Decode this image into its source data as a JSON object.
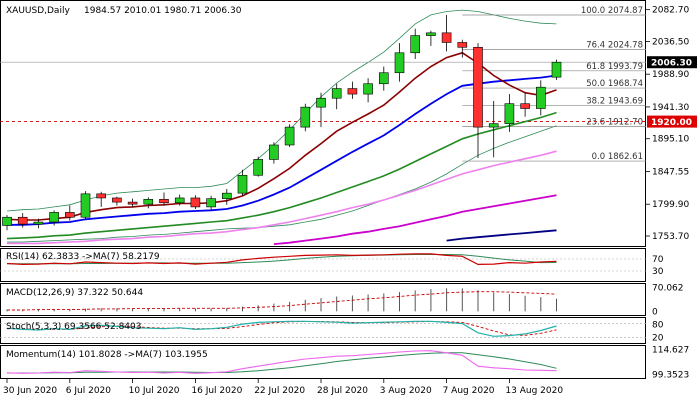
{
  "chart_data": {
    "type": "candlestick",
    "symbol_line": "XAUUSD,Daily",
    "ohlc_text": "1984.57 2010.01 1980.71 2006.30",
    "price_scale": [
      "2082.70",
      "2036.50",
      "1988.90",
      "1941.30",
      "1895.10",
      "1847.55",
      "1799.90",
      "1753.70"
    ],
    "ylim": [
      1745,
      2088
    ],
    "dates": [
      "30 Jun 2020",
      "6 Jul 2020",
      "10 Jul 2020",
      "16 Jul 2020",
      "22 Jul 2020",
      "28 Jul 2020",
      "3 Aug 2020",
      "7 Aug 2020",
      "13 Aug 2020"
    ],
    "candles": [
      [
        1769,
        1784,
        1762,
        1781
      ],
      [
        1781,
        1787,
        1766,
        1771
      ],
      [
        1771,
        1779,
        1765,
        1774
      ],
      [
        1774,
        1791,
        1769,
        1788
      ],
      [
        1788,
        1798,
        1776,
        1781
      ],
      [
        1781,
        1819,
        1778,
        1815
      ],
      [
        1815,
        1818,
        1796,
        1809
      ],
      [
        1809,
        1811,
        1798,
        1803
      ],
      [
        1803,
        1808,
        1796,
        1800
      ],
      [
        1800,
        1810,
        1794,
        1807
      ],
      [
        1807,
        1817,
        1798,
        1802
      ],
      [
        1802,
        1814,
        1798,
        1809
      ],
      [
        1809,
        1813,
        1793,
        1796
      ],
      [
        1796,
        1812,
        1792,
        1808
      ],
      [
        1808,
        1822,
        1799,
        1816
      ],
      [
        1816,
        1850,
        1812,
        1842
      ],
      [
        1842,
        1869,
        1840,
        1865
      ],
      [
        1865,
        1890,
        1859,
        1886
      ],
      [
        1886,
        1916,
        1883,
        1912
      ],
      [
        1912,
        1946,
        1906,
        1941
      ],
      [
        1941,
        1962,
        1912,
        1954
      ],
      [
        1954,
        1975,
        1938,
        1968
      ],
      [
        1968,
        1978,
        1953,
        1960
      ],
      [
        1960,
        1983,
        1948,
        1975
      ],
      [
        1975,
        2000,
        1965,
        1991
      ],
      [
        1991,
        2034,
        1978,
        2020
      ],
      [
        2020,
        2055,
        2011,
        2045
      ],
      [
        2045,
        2052,
        2030,
        2049
      ],
      [
        2049,
        2075,
        2022,
        2035
      ],
      [
        2035,
        2039,
        2013,
        2028
      ],
      [
        2028,
        2034,
        1867,
        1912
      ],
      [
        1912,
        1950,
        1868,
        1917
      ],
      [
        1917,
        1960,
        1905,
        1946
      ],
      [
        1946,
        1962,
        1927,
        1939
      ],
      [
        1939,
        1980,
        1929,
        1970
      ],
      [
        1984.57,
        2010.01,
        1980.71,
        2006.3
      ]
    ],
    "ma_red": [
      1778,
      1777,
      1777,
      1779,
      1781,
      1788,
      1792,
      1795,
      1796,
      1798,
      1799,
      1801,
      1801,
      1802,
      1805,
      1812,
      1823,
      1837,
      1852,
      1871,
      1888,
      1906,
      1919,
      1931,
      1944,
      1963,
      1983,
      2000,
      2013,
      2020,
      2005,
      1987,
      1973,
      1962,
      1958,
      1966
    ],
    "ma_blue": [
      1770,
      1770,
      1771,
      1773,
      1774,
      1778,
      1780,
      1782,
      1784,
      1786,
      1787,
      1789,
      1790,
      1791,
      1793,
      1798,
      1805,
      1814,
      1824,
      1837,
      1850,
      1863,
      1876,
      1888,
      1900,
      1915,
      1931,
      1946,
      1960,
      1972,
      1975,
      1978,
      1980,
      1982,
      1984,
      1987
    ],
    "ma_green": [
      1750,
      1751,
      1752,
      1754,
      1755,
      1758,
      1760,
      1762,
      1764,
      1766,
      1768,
      1770,
      1772,
      1774,
      1776,
      1780,
      1784,
      1789,
      1795,
      1802,
      1809,
      1817,
      1825,
      1833,
      1841,
      1851,
      1862,
      1873,
      1884,
      1895,
      1902,
      1908,
      1914,
      1920,
      1926,
      1933
    ],
    "ma_pink": [
      1743,
      1743,
      1743,
      1744,
      1745,
      1746,
      1748,
      1749,
      1750,
      1752,
      1753,
      1755,
      1757,
      1758,
      1760,
      1763,
      1766,
      1770,
      1774,
      1779,
      1784,
      1789,
      1795,
      1800,
      1806,
      1813,
      1820,
      1828,
      1836,
      1844,
      1850,
      1856,
      1861,
      1866,
      1871,
      1877
    ],
    "ma_magenta": [
      null,
      null,
      null,
      null,
      null,
      null,
      null,
      null,
      null,
      null,
      null,
      null,
      null,
      null,
      null,
      null,
      null,
      1742,
      1744,
      1747,
      1750,
      1753,
      1757,
      1760,
      1764,
      1768,
      1773,
      1778,
      1783,
      1789,
      1793,
      1797,
      1801,
      1805,
      1809,
      1813
    ],
    "ma_navy": [
      null,
      null,
      null,
      null,
      null,
      null,
      null,
      null,
      null,
      null,
      null,
      null,
      null,
      null,
      null,
      null,
      null,
      null,
      null,
      null,
      null,
      null,
      null,
      null,
      null,
      null,
      null,
      null,
      1747,
      1750,
      1752,
      1754,
      1756,
      1758,
      1760,
      1762
    ],
    "bb_upper": [
      1790,
      1792,
      1793,
      1796,
      1799,
      1806,
      1812,
      1816,
      1818,
      1820,
      1822,
      1824,
      1824,
      1826,
      1830,
      1848,
      1866,
      1886,
      1908,
      1932,
      1956,
      1976,
      1992,
      2006,
      2021,
      2041,
      2062,
      2075,
      2080,
      2082,
      2080,
      2075,
      2070,
      2066,
      2063,
      2062
    ],
    "bb_lower": [
      1745,
      1745,
      1746,
      1747,
      1748,
      1749,
      1750,
      1752,
      1753,
      1755,
      1756,
      1758,
      1760,
      1762,
      1764,
      1765,
      1766,
      1768,
      1770,
      1774,
      1778,
      1784,
      1790,
      1798,
      1806,
      1814,
      1822,
      1832,
      1844,
      1858,
      1871,
      1881,
      1890,
      1898,
      1906,
      1914
    ],
    "h_levels": [
      {
        "label": "100.0 2074.87",
        "price": 2074.87,
        "style": "solid"
      },
      {
        "label": "76.4 2024.78",
        "price": 2024.78,
        "style": "solid"
      },
      {
        "label": "61.8 1993.79",
        "price": 1993.79,
        "style": "solid"
      },
      {
        "label": "50.0 1968.74",
        "price": 1968.74,
        "style": "solid"
      },
      {
        "label": "38.2 1943.69",
        "price": 1943.69,
        "style": "solid"
      },
      {
        "label": "23.6 1912.70",
        "price": 1912.7,
        "style": "solid"
      },
      {
        "label": "0.0 1862.61",
        "price": 1862.61,
        "style": "solid"
      },
      {
        "label": "",
        "price": 2006.3,
        "style": "solid",
        "axis_tag": "2006.30"
      },
      {
        "label": "",
        "price": 1920.0,
        "style": "dashed",
        "axis_tag": "1920.00"
      }
    ],
    "panels": {
      "rsi": {
        "label": "RSI(14) 62.3833  ->MA(7) 58.2179",
        "scale": [
          "70",
          "30"
        ],
        "ylim": [
          0,
          100
        ],
        "values": [
          55,
          52,
          53,
          56,
          54,
          60,
          58,
          56,
          55,
          57,
          55,
          57,
          53,
          56,
          59,
          67,
          72,
          76,
          79,
          82,
          83,
          84,
          82,
          83,
          84,
          86,
          87,
          87,
          82,
          79,
          52,
          53,
          58,
          56,
          60,
          62.3833
        ],
        "ma": [
          54,
          54,
          54,
          54,
          54,
          55,
          55,
          56,
          56,
          57,
          57,
          56,
          56,
          56,
          56,
          58,
          60,
          63,
          67,
          72,
          76,
          79,
          81,
          82,
          83,
          84,
          85,
          85,
          85,
          84,
          79,
          73,
          67,
          63,
          58,
          58.2179
        ]
      },
      "macd": {
        "label": "MACD(12,26,9) 37.322 50.644",
        "scale": [
          "70.062",
          "0"
        ],
        "ylim": [
          -5,
          75
        ],
        "hist": [
          5,
          5,
          5,
          6,
          6,
          8,
          9,
          9,
          9,
          9,
          9,
          10,
          9,
          9,
          10,
          14,
          18,
          23,
          28,
          34,
          39,
          44,
          47,
          50,
          53,
          57,
          62,
          66,
          68,
          68,
          62,
          56,
          51,
          46,
          42,
          37.322
        ],
        "signal": [
          4,
          4,
          5,
          5,
          5,
          6,
          7,
          7,
          8,
          8,
          8,
          9,
          9,
          9,
          9,
          10,
          12,
          14,
          17,
          21,
          25,
          29,
          33,
          37,
          40,
          44,
          48,
          51,
          55,
          57,
          58,
          58,
          57,
          55,
          53,
          50.644
        ]
      },
      "stoch": {
        "label": "Stoch(5,3,3) 69.3566 52.8403",
        "scale": [
          "80",
          "20"
        ],
        "ylim": [
          0,
          100
        ],
        "k": [
          60,
          55,
          52,
          58,
          55,
          70,
          72,
          68,
          62,
          60,
          58,
          62,
          55,
          58,
          64,
          78,
          85,
          88,
          90,
          90,
          88,
          86,
          82,
          84,
          86,
          88,
          90,
          90,
          85,
          80,
          40,
          25,
          28,
          35,
          50,
          69.3566
        ],
        "d": [
          58,
          57,
          55,
          55,
          55,
          61,
          66,
          70,
          67,
          63,
          60,
          60,
          58,
          58,
          59,
          67,
          76,
          84,
          88,
          89,
          89,
          88,
          85,
          84,
          84,
          86,
          88,
          89,
          88,
          85,
          68,
          48,
          31,
          29,
          38,
          52.8403
        ]
      },
      "momentum": {
        "label": "Momentum(14) 101.8028  ->MA(7) 103.1955",
        "scale": [
          "114.627",
          "99.3523"
        ],
        "ylim": [
          98,
          116
        ],
        "values": [
          100.5,
          100.2,
          100.4,
          100.9,
          100.6,
          101.8,
          101.4,
          101.0,
          100.7,
          100.9,
          100.4,
          100.8,
          100.2,
          100.6,
          101.1,
          103.0,
          104.5,
          106.0,
          107.5,
          108.8,
          109.6,
          110.5,
          110.8,
          111.5,
          112.2,
          113.0,
          113.6,
          113.8,
          112.5,
          111.0,
          104.5,
          103.5,
          103.0,
          102.2,
          102.0,
          101.8028
        ],
        "ma": [
          100.4,
          100.4,
          100.4,
          100.5,
          100.6,
          100.8,
          100.9,
          101.0,
          101.0,
          101.0,
          101.0,
          101.0,
          100.9,
          100.7,
          100.7,
          101.1,
          101.8,
          102.6,
          103.6,
          104.8,
          106.0,
          107.3,
          108.4,
          109.3,
          110.0,
          110.9,
          111.6,
          112.2,
          112.5,
          112.5,
          111.3,
          110.2,
          108.8,
          107.2,
          105.5,
          103.1955
        ]
      }
    }
  }
}
